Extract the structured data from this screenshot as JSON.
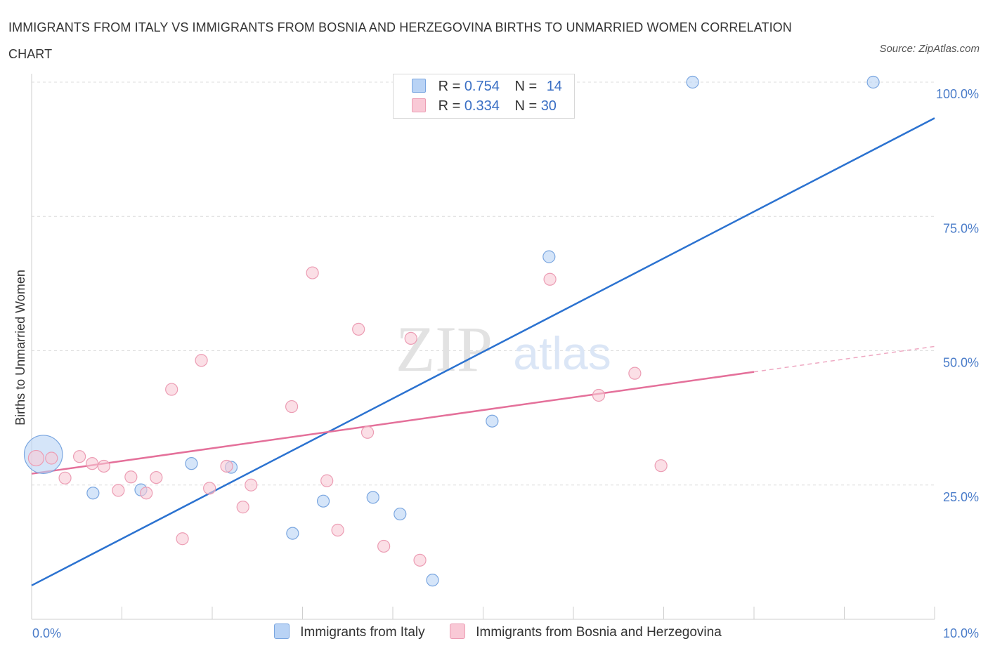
{
  "header": {
    "title": "IMMIGRANTS FROM ITALY VS IMMIGRANTS FROM BOSNIA AND HERZEGOVINA BIRTHS TO UNMARRIED WOMEN CORRELATION CHART",
    "source": "Source: ZipAtlas.com"
  },
  "colors": {
    "italy_fill": "#b9d3f5",
    "italy_stroke": "#7aa6e0",
    "italy_line": "#2b72d0",
    "bosnia_fill": "#f9c9d6",
    "bosnia_stroke": "#ec9db4",
    "bosnia_line": "#e4709a",
    "tick_text": "#4a7cc9",
    "grid": "#dcdcdc"
  },
  "legend": {
    "italy": {
      "r_label": "R =",
      "r_value": "0.754",
      "n_label": "N =",
      "n_value": "14"
    },
    "bosnia": {
      "r_label": "R =",
      "r_value": "0.334",
      "n_label": "N =",
      "n_value": "30"
    }
  },
  "watermark": {
    "zip": "ZIP",
    "atlas": "atlas"
  },
  "chart_data": {
    "type": "scatter",
    "title": "IMMIGRANTS FROM ITALY VS IMMIGRANTS FROM BOSNIA AND HERZEGOVINA BIRTHS TO UNMARRIED WOMEN CORRELATION CHART",
    "xlabel": "",
    "ylabel": "Births to Unmarried Women",
    "xlim": [
      0,
      10
    ],
    "ylim": [
      0,
      100
    ],
    "x_tick_labels": {
      "0": "0.0%",
      "10": "10.0%"
    },
    "y_ticks": [
      25,
      50,
      75,
      100
    ],
    "y_tick_labels": [
      "25.0%",
      "50.0%",
      "75.0%",
      "100.0%"
    ],
    "grid": true,
    "legend_position": "top-center",
    "series": [
      {
        "name": "Immigrants from Italy",
        "points": [
          [
            0.13,
            30.7
          ],
          [
            0.68,
            23.5
          ],
          [
            1.21,
            24.1
          ],
          [
            1.77,
            29.0
          ],
          [
            2.21,
            28.3
          ],
          [
            2.89,
            16.0
          ],
          [
            3.23,
            22.0
          ],
          [
            3.78,
            22.7
          ],
          [
            4.08,
            19.6
          ],
          [
            4.44,
            7.3
          ],
          [
            5.1,
            36.9
          ],
          [
            5.73,
            67.5
          ],
          [
            7.32,
            100.0
          ],
          [
            9.32,
            100.0
          ]
        ],
        "bubble_size": [
          3.2,
          1,
          1,
          1,
          1,
          1,
          1,
          1,
          1,
          1,
          1,
          1,
          1,
          1
        ],
        "trend": {
          "x": [
            0,
            10
          ],
          "y": [
            6.3,
            93.3
          ],
          "dashed_from": null
        }
      },
      {
        "name": "Immigrants from Bosnia and Herzegovina",
        "points": [
          [
            0.05,
            30.0
          ],
          [
            0.22,
            30.0
          ],
          [
            0.37,
            26.3
          ],
          [
            0.53,
            30.3
          ],
          [
            0.67,
            29.0
          ],
          [
            0.8,
            28.5
          ],
          [
            0.96,
            24.0
          ],
          [
            1.1,
            26.5
          ],
          [
            1.27,
            23.5
          ],
          [
            1.38,
            26.4
          ],
          [
            1.55,
            42.8
          ],
          [
            1.67,
            15.0
          ],
          [
            1.88,
            48.2
          ],
          [
            1.97,
            24.4
          ],
          [
            2.16,
            28.5
          ],
          [
            2.34,
            20.9
          ],
          [
            2.43,
            25.0
          ],
          [
            2.88,
            39.6
          ],
          [
            3.11,
            64.5
          ],
          [
            3.27,
            25.8
          ],
          [
            3.39,
            16.6
          ],
          [
            3.62,
            54.0
          ],
          [
            3.72,
            34.8
          ],
          [
            3.9,
            13.6
          ],
          [
            4.2,
            52.3
          ],
          [
            4.3,
            11.0
          ],
          [
            5.74,
            63.3
          ],
          [
            6.28,
            41.7
          ],
          [
            6.68,
            45.8
          ],
          [
            6.97,
            28.6
          ]
        ],
        "bubble_size": [
          1.3,
          1,
          1,
          1,
          1,
          1,
          1,
          1,
          1,
          1,
          1,
          1,
          1,
          1,
          1,
          1,
          1,
          1,
          1,
          1,
          1,
          1,
          1,
          1,
          1,
          1,
          1,
          1,
          1,
          1
        ],
        "trend": {
          "x": [
            0,
            10
          ],
          "y": [
            27.1,
            50.8
          ],
          "dashed_from": 8.0
        }
      }
    ]
  },
  "bottom_legend": {
    "italy_label": "Immigrants from Italy",
    "bosnia_label": "Immigrants from Bosnia and Herzegovina"
  }
}
